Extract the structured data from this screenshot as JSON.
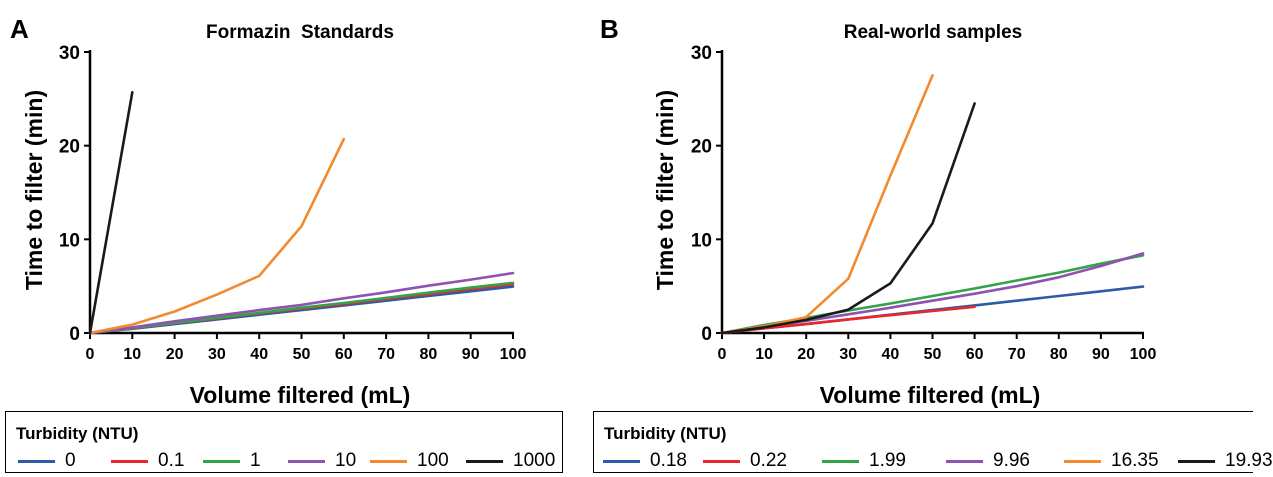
{
  "panels": [
    {
      "letter": "A",
      "legend_title": "Turbidity (NTU)"
    },
    {
      "letter": "B",
      "legend_title": "Turbidity (NTU)"
    }
  ],
  "chart_data": [
    {
      "type": "line",
      "title": "Formazin  Standards",
      "xlabel": "Volume filtered (mL)",
      "ylabel": "Time to filter (min)",
      "xlim": [
        0,
        100
      ],
      "ylim": [
        0,
        30
      ],
      "xticks": [
        0,
        10,
        20,
        30,
        40,
        50,
        60,
        70,
        80,
        90,
        100
      ],
      "yticks": [
        0,
        10,
        20,
        30
      ],
      "grid": false,
      "legend_position": "bottom",
      "series": [
        {
          "name": "0",
          "color": "#2e5ba8",
          "x": [
            0,
            10,
            20,
            30,
            40,
            50,
            60,
            70,
            80,
            90,
            100
          ],
          "y": [
            0,
            0.45,
            0.95,
            1.45,
            1.95,
            2.45,
            2.95,
            3.45,
            3.95,
            4.45,
            4.95
          ]
        },
        {
          "name": "0.1",
          "color": "#e8282b",
          "x": [
            0,
            10,
            20,
            30,
            40,
            50,
            60,
            70,
            80,
            90,
            100
          ],
          "y": [
            0,
            0.5,
            1.05,
            1.55,
            2.1,
            2.6,
            3.1,
            3.65,
            4.15,
            4.7,
            5.2
          ]
        },
        {
          "name": "1",
          "color": "#33a348",
          "x": [
            0,
            10,
            20,
            30,
            40,
            50,
            60,
            70,
            80,
            90,
            100
          ],
          "y": [
            0,
            0.52,
            1.08,
            1.6,
            2.15,
            2.7,
            3.2,
            3.75,
            4.3,
            4.85,
            5.35
          ]
        },
        {
          "name": "10",
          "color": "#8e52b0",
          "x": [
            0,
            10,
            20,
            30,
            40,
            50,
            60,
            70,
            80,
            90,
            100
          ],
          "y": [
            0,
            0.6,
            1.25,
            1.85,
            2.45,
            3.0,
            3.7,
            4.35,
            5.05,
            5.7,
            6.4
          ]
        },
        {
          "name": "100",
          "color": "#f38a2f",
          "x": [
            0,
            10,
            20,
            30,
            40,
            50,
            60
          ],
          "y": [
            0,
            0.9,
            2.3,
            4.1,
            6.1,
            11.4,
            20.7
          ]
        },
        {
          "name": "1000",
          "color": "#1a1a1a",
          "x": [
            0,
            10
          ],
          "y": [
            0,
            25.7
          ]
        }
      ]
    },
    {
      "type": "line",
      "title": "Real-world samples",
      "xlabel": "Volume filtered (mL)",
      "ylabel": "Time to filter (min)",
      "xlim": [
        0,
        100
      ],
      "ylim": [
        0,
        30
      ],
      "xticks": [
        0,
        10,
        20,
        30,
        40,
        50,
        60,
        70,
        80,
        90,
        100
      ],
      "yticks": [
        0,
        10,
        20,
        30
      ],
      "grid": false,
      "legend_position": "bottom",
      "series": [
        {
          "name": "0.18",
          "color": "#2e5ba8",
          "x": [
            0,
            10,
            20,
            30,
            40,
            50,
            60,
            70,
            80,
            90,
            100
          ],
          "y": [
            0,
            0.5,
            0.95,
            1.45,
            1.95,
            2.45,
            2.95,
            3.45,
            3.95,
            4.45,
            4.95
          ]
        },
        {
          "name": "0.22",
          "color": "#e8282b",
          "x": [
            0,
            10,
            20,
            30,
            40,
            50,
            60
          ],
          "y": [
            0,
            0.5,
            0.95,
            1.45,
            1.9,
            2.35,
            2.8
          ]
        },
        {
          "name": "1.99",
          "color": "#33a348",
          "x": [
            0,
            10,
            20,
            30,
            40,
            50,
            60,
            70,
            80,
            90,
            100
          ],
          "y": [
            0,
            0.85,
            1.6,
            2.4,
            3.15,
            3.95,
            4.75,
            5.6,
            6.45,
            7.4,
            8.3
          ]
        },
        {
          "name": "9.96",
          "color": "#8e52b0",
          "x": [
            0,
            10,
            20,
            30,
            40,
            50,
            60,
            70,
            80,
            90,
            100
          ],
          "y": [
            0,
            0.7,
            1.3,
            2.0,
            2.7,
            3.45,
            4.2,
            5.0,
            5.95,
            7.15,
            8.5
          ]
        },
        {
          "name": "16.35",
          "color": "#f38a2f",
          "x": [
            0,
            10,
            20,
            30,
            40,
            50
          ],
          "y": [
            0,
            0.7,
            1.7,
            5.8,
            16.8,
            27.5
          ]
        },
        {
          "name": "19.93",
          "color": "#1a1a1a",
          "x": [
            0,
            10,
            20,
            30,
            40,
            50,
            60
          ],
          "y": [
            0,
            0.6,
            1.4,
            2.5,
            5.3,
            11.7,
            24.5
          ]
        }
      ]
    }
  ]
}
